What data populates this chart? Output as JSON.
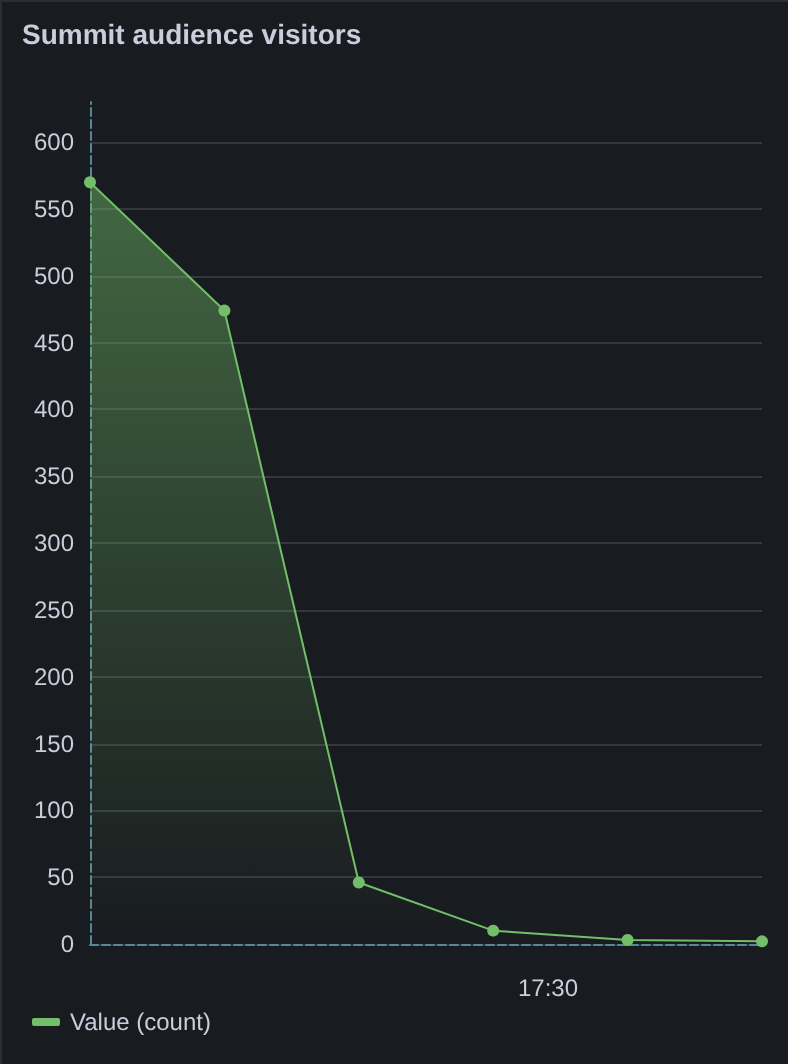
{
  "chart_data": {
    "type": "area",
    "title": "Summit audience visitors",
    "categories": [
      null,
      null,
      null,
      null,
      null,
      null
    ],
    "series": [
      {
        "name": "Value (count)",
        "color": "#73bf69",
        "values": [
          570,
          474,
          46,
          10,
          3,
          2
        ]
      }
    ],
    "ylim": [
      0,
      630
    ],
    "yticks": [
      0,
      50,
      100,
      150,
      200,
      250,
      300,
      350,
      400,
      450,
      500,
      550,
      600
    ],
    "annotations": [
      "17:30"
    ],
    "grid": true,
    "legend": "bottom left",
    "marker": "circle"
  }
}
